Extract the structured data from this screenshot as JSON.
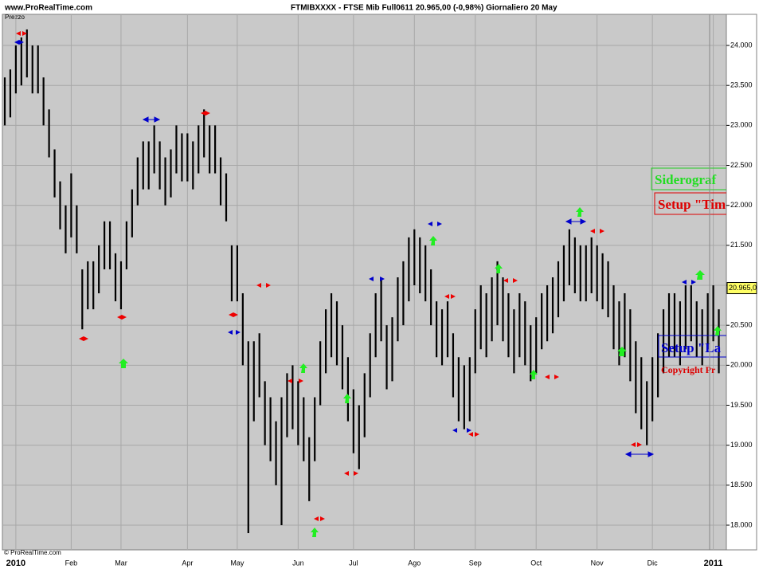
{
  "header": {
    "site": "www.ProRealTime.com",
    "instrument": "FTMIBXXXX - FTSE Mib Full0611   20.965,00 (-0,98%)   Giornaliero  20 May"
  },
  "footer": "© ProRealTime.com",
  "chart_data": {
    "type": "ohlc",
    "ylabel": "Prezzo",
    "categories": [
      null,
      null,
      "2010",
      null,
      null,
      null,
      null,
      null,
      null,
      null,
      null,
      null,
      "Feb",
      null,
      null,
      null,
      null,
      null,
      null,
      null,
      null,
      "Mar",
      null,
      null,
      null,
      null,
      null,
      null,
      null,
      null,
      null,
      null,
      null,
      "Apr",
      null,
      null,
      null,
      null,
      null,
      null,
      null,
      null,
      "May",
      null,
      null,
      null,
      null,
      null,
      null,
      null,
      null,
      null,
      null,
      "Jun",
      null,
      null,
      null,
      null,
      null,
      null,
      null,
      null,
      null,
      "Jul",
      null,
      null,
      null,
      null,
      null,
      null,
      null,
      null,
      null,
      null,
      "Ago",
      null,
      null,
      null,
      null,
      null,
      null,
      null,
      null,
      null,
      null,
      "Sep",
      null,
      null,
      null,
      null,
      null,
      null,
      null,
      null,
      null,
      null,
      "Oct",
      null,
      null,
      null,
      null,
      null,
      null,
      null,
      null,
      null,
      null,
      "Nov",
      null,
      null,
      null,
      null,
      null,
      null,
      null,
      null,
      null,
      "Dic",
      null,
      null,
      null,
      null,
      null,
      null,
      null,
      null,
      null,
      null,
      "2011",
      null
    ],
    "high": [
      23600,
      23700,
      24000,
      24100,
      24200,
      24000,
      24000,
      23600,
      23200,
      22700,
      22300,
      22000,
      22400,
      22000,
      21200,
      21300,
      21300,
      21500,
      21800,
      21800,
      21400,
      21300,
      21800,
      22200,
      22600,
      22800,
      22800,
      23000,
      22800,
      22600,
      22700,
      23000,
      22900,
      22900,
      22800,
      23000,
      23200,
      23000,
      23000,
      22600,
      22400,
      21500,
      21500,
      20900,
      20300,
      20300,
      20400,
      19800,
      19600,
      19300,
      19600,
      19900,
      20000,
      19800,
      19600,
      19100,
      19600,
      20300,
      20700,
      20900,
      20800,
      20500,
      20100,
      19700,
      19500,
      19900,
      20400,
      20900,
      21100,
      20500,
      20600,
      21100,
      21300,
      21600,
      21700,
      21600,
      21500,
      21200,
      20800,
      20700,
      20800,
      20400,
      20100,
      20000,
      20100,
      20700,
      21000,
      20900,
      21100,
      21300,
      21100,
      20900,
      20700,
      20900,
      20800,
      20500,
      20600,
      20900,
      21000,
      21100,
      21300,
      21500,
      21700,
      21600,
      21500,
      21500,
      21600,
      21500,
      21400,
      21300,
      21000,
      20800,
      20900,
      20700,
      20300,
      20100,
      19800,
      20100,
      20400,
      20700,
      20900,
      20900,
      20800,
      21000,
      21000,
      20800,
      20700,
      20900,
      21000,
      20700
    ],
    "low": [
      23000,
      23100,
      23400,
      23500,
      23600,
      23400,
      23400,
      23000,
      22600,
      22100,
      21700,
      21400,
      21600,
      21400,
      20450,
      20700,
      20700,
      20900,
      21200,
      21200,
      20800,
      20700,
      21200,
      21600,
      22000,
      22200,
      22200,
      22400,
      22200,
      22000,
      22100,
      22400,
      22300,
      22300,
      22200,
      22400,
      22600,
      22400,
      22400,
      22000,
      21800,
      20800,
      20800,
      20000,
      17900,
      19300,
      19600,
      19000,
      18800,
      18500,
      18000,
      19100,
      19200,
      19000,
      18800,
      18300,
      18800,
      19500,
      19900,
      20100,
      20000,
      19700,
      19300,
      18900,
      18700,
      19100,
      19600,
      20100,
      20300,
      19700,
      19800,
      20300,
      20500,
      20800,
      21000,
      20900,
      20800,
      20500,
      20100,
      20000,
      20100,
      19600,
      19300,
      19200,
      19300,
      19900,
      20200,
      20100,
      20300,
      20500,
      20300,
      20100,
      19900,
      20100,
      20000,
      19800,
      19900,
      20200,
      20300,
      20400,
      20600,
      20800,
      21000,
      20900,
      20800,
      20800,
      20900,
      20800,
      20700,
      20600,
      20200,
      20000,
      20100,
      19800,
      19400,
      19200,
      19000,
      19300,
      19600,
      19900,
      20100,
      20100,
      20000,
      20200,
      20300,
      20100,
      20000,
      20200,
      20300,
      19900
    ],
    "color": "#000000",
    "ylim": [
      17691,
      24389
    ],
    "yticks": [
      {
        "value": 18000,
        "label": "18.000"
      },
      {
        "value": 18500,
        "label": "18.500"
      },
      {
        "value": 19000,
        "label": "19.000"
      },
      {
        "value": 19500,
        "label": "19.500"
      },
      {
        "value": 20000,
        "label": "20.000"
      },
      {
        "value": 20500,
        "label": "20.500"
      },
      {
        "value": 21000,
        "label": "21.000"
      },
      {
        "value": 21500,
        "label": "21.500"
      },
      {
        "value": 22000,
        "label": "22.000"
      },
      {
        "value": 22500,
        "label": "22.500"
      },
      {
        "value": 23000,
        "label": "23.000"
      },
      {
        "value": 23500,
        "label": "23.500"
      },
      {
        "value": 24000,
        "label": "24.000"
      }
    ],
    "last_price": {
      "value": 20965,
      "label": "20.965,0"
    },
    "grid": true,
    "annotations": [
      "Siderograf",
      "Setup \"Tim",
      "Setup \"La",
      "Copyright Pr"
    ]
  }
}
